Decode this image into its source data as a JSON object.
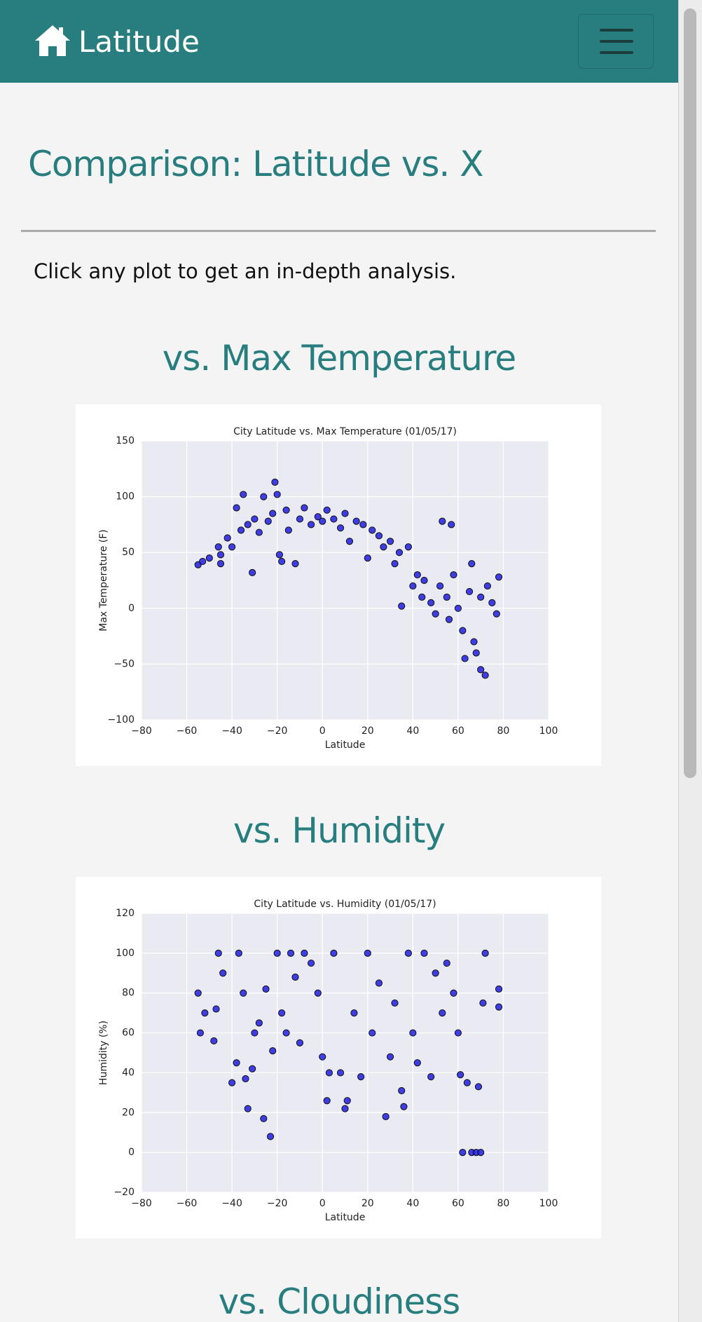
{
  "navbar": {
    "brand": "Latitude"
  },
  "header": {
    "title": "Comparison: Latitude vs. X",
    "intro": "Click any plot to get an in-depth analysis."
  },
  "sections": [
    {
      "heading": "vs. Max Temperature"
    },
    {
      "heading": "vs. Humidity"
    },
    {
      "heading": "vs. Cloudiness"
    }
  ],
  "chart_data": [
    {
      "type": "scatter",
      "title": "City Latitude vs. Max Temperature (01/05/17)",
      "x_label": "Latitude",
      "y_label": "Max Temperature (F)",
      "color": "#1f1fe0",
      "grid": true,
      "xlim": [
        -80,
        100
      ],
      "ylim": [
        -100,
        150
      ],
      "xticks": [
        {
          "value": -80,
          "label": "−80"
        },
        {
          "value": -60,
          "label": "−60"
        },
        {
          "value": -40,
          "label": "−40"
        },
        {
          "value": -20,
          "label": "−20"
        },
        0,
        20,
        40,
        60,
        80,
        100
      ],
      "yticks": [
        {
          "value": -100,
          "label": "−100"
        },
        {
          "value": -50,
          "label": "−50"
        },
        0,
        50,
        100,
        150
      ],
      "x": [
        -55,
        -53,
        -50,
        -46,
        -45,
        -45,
        -42,
        -40,
        -38,
        -36,
        -35,
        -33,
        -31,
        -30,
        -28,
        -26,
        -24,
        -22,
        -21,
        -20,
        -19,
        -18,
        -16,
        -15,
        -12,
        -10,
        -8,
        -5,
        -2,
        0,
        2,
        5,
        8,
        10,
        12,
        15,
        18,
        20,
        22,
        25,
        27,
        30,
        32,
        34,
        35,
        38,
        40,
        42,
        44,
        45,
        48,
        50,
        52,
        53,
        55,
        56,
        57,
        58,
        60,
        62,
        63,
        65,
        66,
        67,
        68,
        70,
        70,
        72,
        73,
        75,
        77,
        78
      ],
      "y": [
        39,
        42,
        45,
        55,
        40,
        48,
        63,
        55,
        90,
        70,
        102,
        75,
        32,
        80,
        68,
        100,
        78,
        85,
        113,
        102,
        48,
        42,
        88,
        70,
        40,
        80,
        90,
        75,
        82,
        78,
        88,
        80,
        72,
        85,
        60,
        78,
        75,
        45,
        70,
        65,
        55,
        60,
        40,
        50,
        2,
        55,
        20,
        30,
        10,
        25,
        5,
        -5,
        20,
        78,
        10,
        -10,
        75,
        30,
        0,
        -20,
        -45,
        15,
        40,
        -30,
        -40,
        -55,
        10,
        -60,
        20,
        5,
        -5,
        28
      ]
    },
    {
      "type": "scatter",
      "title": "City Latitude vs. Humidity (01/05/17)",
      "x_label": "Latitude",
      "y_label": "Humidity (%)",
      "color": "#1f1fe0",
      "grid": true,
      "xlim": [
        -80,
        100
      ],
      "ylim": [
        -20,
        120
      ],
      "xticks": [
        {
          "value": -80,
          "label": "−80"
        },
        {
          "value": -60,
          "label": "−60"
        },
        {
          "value": -40,
          "label": "−40"
        },
        {
          "value": -20,
          "label": "−20"
        },
        0,
        20,
        40,
        60,
        80,
        100
      ],
      "yticks": [
        {
          "value": -20,
          "label": "−20"
        },
        0,
        20,
        40,
        60,
        80,
        100,
        120
      ],
      "x": [
        -55,
        -54,
        -52,
        -48,
        -47,
        -46,
        -44,
        -40,
        -38,
        -37,
        -35,
        -34,
        -33,
        -31,
        -30,
        -28,
        -26,
        -25,
        -23,
        -22,
        -20,
        -18,
        -16,
        -14,
        -12,
        -10,
        -8,
        -5,
        -2,
        0,
        2,
        3,
        5,
        8,
        10,
        11,
        14,
        17,
        20,
        22,
        25,
        28,
        30,
        32,
        35,
        36,
        38,
        40,
        42,
        45,
        48,
        50,
        53,
        55,
        58,
        60,
        61,
        62,
        64,
        66,
        68,
        69,
        70,
        71,
        72,
        78,
        78
      ],
      "y": [
        80,
        60,
        70,
        56,
        72,
        100,
        90,
        35,
        45,
        100,
        80,
        37,
        22,
        42,
        60,
        65,
        17,
        82,
        8,
        51,
        100,
        70,
        60,
        100,
        88,
        55,
        100,
        95,
        80,
        48,
        26,
        40,
        100,
        40,
        22,
        26,
        70,
        38,
        100,
        60,
        85,
        18,
        48,
        75,
        31,
        23,
        100,
        60,
        45,
        100,
        38,
        90,
        70,
        95,
        80,
        60,
        39,
        0,
        35,
        0,
        0,
        33,
        0,
        75,
        100,
        82,
        73
      ]
    }
  ]
}
